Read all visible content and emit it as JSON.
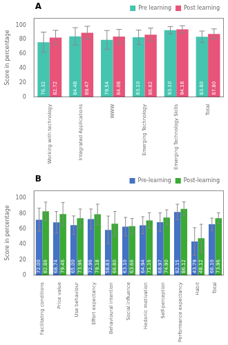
{
  "chart_data": [
    {
      "type": "bar",
      "annotations": [
        "A"
      ],
      "ylabel": "Score in percentage",
      "categories": [
        "Working with technology",
        "Integrated Applications",
        "WWW",
        "Emerging Technology",
        "Emerging Technology Skills",
        "Total"
      ],
      "series": [
        {
          "name": "Pre learning",
          "color": "#45c4b0",
          "values": [
            76.32,
            84.48,
            79.54,
            83.1,
            93.1,
            83.8
          ],
          "value_labels": [
            "76.32",
            "84.48",
            "79.54",
            "83.10",
            "93.10",
            "83.80"
          ],
          "errors": [
            14,
            12,
            13,
            10,
            5,
            8
          ]
        },
        {
          "name": "Post learning",
          "color": "#e8537a",
          "values": [
            82.72,
            89.47,
            84.08,
            86.82,
            94.18,
            87.8
          ],
          "value_labels": [
            "82.72",
            "89.47",
            "84.08",
            "86.82",
            "94.18",
            "87.80"
          ],
          "errors": [
            10,
            9,
            10,
            9,
            5,
            7
          ]
        }
      ],
      "ylim": [
        0,
        110
      ],
      "yticks": [
        0,
        20,
        40,
        60,
        80,
        100
      ],
      "grid": false,
      "legend": "upper right",
      "data_labels": true
    },
    {
      "type": "bar",
      "annotations": [
        "B"
      ],
      "ylabel": "Score in percentage",
      "categories": [
        "Facilitating conditions",
        "Price value",
        "Use behaviour",
        "Effort expectancy",
        "Behavioural intention",
        "Social influence",
        "Hedonic motivation",
        "Self-perception",
        "Performance expectancy",
        "Habit",
        "Total"
      ],
      "series": [
        {
          "name": "Pre-learning",
          "color": "#4472c4",
          "values": [
            72.0,
            68.74,
            65.0,
            72.96,
            58.83,
            63.1,
            64.94,
            68.97,
            82.15,
            43.79,
            66.1
          ],
          "value_labels": [
            "72.00",
            "68.74",
            "65.00",
            "72.96",
            "58.83",
            "63.10",
            "64.94",
            "68.97",
            "82.15",
            "43.79",
            "66.10"
          ],
          "errors": [
            15,
            14,
            12,
            13,
            18,
            12,
            11,
            12,
            10,
            18,
            8
          ]
        },
        {
          "name": "Post-learning",
          "color": "#3aaa35",
          "values": [
            82.86,
            79.46,
            73.96,
            79.18,
            66.8,
            63.66,
            71.16,
            74.9,
            86.12,
            48.12,
            73.96
          ],
          "value_labels": [
            "82.86",
            "79.46",
            "73.96",
            "79.18",
            "66.80",
            "63.66",
            "71.16",
            "74.90",
            "86.12",
            "48.12",
            "73.96"
          ],
          "errors": [
            12,
            15,
            12,
            13,
            16,
            10,
            10,
            10,
            9,
            18,
            7
          ]
        }
      ],
      "ylim": [
        0,
        110
      ],
      "yticks": [
        0,
        20,
        40,
        60,
        80,
        100
      ],
      "grid": false,
      "legend": "upper right",
      "data_labels": true
    }
  ]
}
